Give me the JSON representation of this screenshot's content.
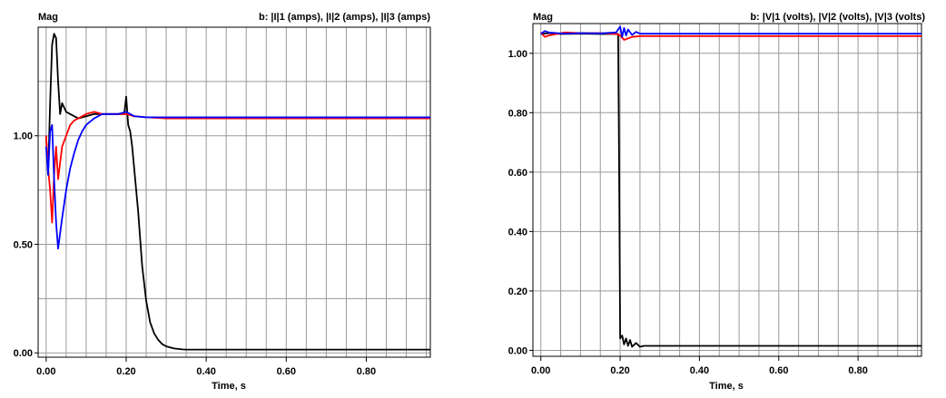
{
  "chart_data": [
    {
      "type": "line",
      "ylabel": "Mag",
      "legend": "b:  |I|1 (amps),  |I|2 (amps),  |I|3 (amps)",
      "xlabel": "Time, s",
      "xlim": [
        -0.02,
        0.96
      ],
      "ylim": [
        -0.02,
        1.5
      ],
      "x_ticks": [
        0.0,
        0.2,
        0.4,
        0.6,
        0.8
      ],
      "x_tick_labels": [
        "0.00",
        "0.20",
        "0.40",
        "0.60",
        "0.80"
      ],
      "x_grid_step": 0.05,
      "y_ticks": [
        0.0,
        0.5,
        1.0
      ],
      "y_tick_labels": [
        "0.00",
        "0.50",
        "1.00"
      ],
      "y_grid": [
        0.0,
        0.25,
        0.5,
        0.75,
        1.0,
        1.25
      ],
      "grid": true,
      "series": [
        {
          "name": "|I|1",
          "color": "#000000",
          "x": [
            0.0,
            0.005,
            0.01,
            0.015,
            0.02,
            0.025,
            0.03,
            0.035,
            0.04,
            0.05,
            0.06,
            0.08,
            0.1,
            0.12,
            0.14,
            0.16,
            0.18,
            0.195,
            0.2,
            0.205,
            0.21,
            0.215,
            0.22,
            0.23,
            0.24,
            0.25,
            0.26,
            0.27,
            0.28,
            0.29,
            0.3,
            0.31,
            0.32,
            0.33,
            0.34,
            0.35,
            0.4,
            0.5,
            0.6,
            0.7,
            0.8,
            0.9,
            0.96
          ],
          "y": [
            1.0,
            0.82,
            1.15,
            1.42,
            1.47,
            1.45,
            1.25,
            1.1,
            1.15,
            1.11,
            1.1,
            1.08,
            1.09,
            1.1,
            1.1,
            1.1,
            1.1,
            1.1,
            1.18,
            1.05,
            1.02,
            0.95,
            0.85,
            0.65,
            0.4,
            0.24,
            0.14,
            0.09,
            0.06,
            0.04,
            0.03,
            0.025,
            0.02,
            0.018,
            0.016,
            0.015,
            0.015,
            0.015,
            0.015,
            0.015,
            0.015,
            0.015,
            0.015
          ]
        },
        {
          "name": "|I|2",
          "color": "#ff0000",
          "x": [
            0.0,
            0.005,
            0.01,
            0.015,
            0.02,
            0.025,
            0.03,
            0.04,
            0.05,
            0.06,
            0.07,
            0.08,
            0.1,
            0.12,
            0.14,
            0.16,
            0.18,
            0.2,
            0.22,
            0.25,
            0.3,
            0.4,
            0.5,
            0.6,
            0.7,
            0.8,
            0.9,
            0.96
          ],
          "y": [
            1.0,
            0.85,
            0.75,
            0.6,
            0.82,
            0.95,
            0.8,
            0.95,
            1.0,
            1.05,
            1.07,
            1.08,
            1.1,
            1.11,
            1.1,
            1.1,
            1.1,
            1.1,
            1.09,
            1.085,
            1.08,
            1.08,
            1.08,
            1.08,
            1.08,
            1.08,
            1.08,
            1.08
          ]
        },
        {
          "name": "|I|3",
          "color": "#0000ff",
          "x": [
            0.0,
            0.005,
            0.01,
            0.015,
            0.02,
            0.025,
            0.03,
            0.035,
            0.04,
            0.05,
            0.06,
            0.07,
            0.08,
            0.09,
            0.1,
            0.12,
            0.14,
            0.16,
            0.18,
            0.2,
            0.22,
            0.25,
            0.3,
            0.4,
            0.5,
            0.6,
            0.7,
            0.8,
            0.9,
            0.96
          ],
          "y": [
            0.95,
            0.82,
            1.02,
            1.05,
            0.8,
            0.6,
            0.48,
            0.55,
            0.62,
            0.75,
            0.85,
            0.92,
            0.98,
            1.02,
            1.05,
            1.08,
            1.1,
            1.1,
            1.1,
            1.11,
            1.09,
            1.085,
            1.085,
            1.085,
            1.085,
            1.085,
            1.085,
            1.085,
            1.085,
            1.085
          ]
        }
      ]
    },
    {
      "type": "line",
      "ylabel": "Mag",
      "legend": "b:  |V|1 (volts),  |V|2 (volts),  |V|3 (volts)",
      "xlabel": "Time, s",
      "xlim": [
        -0.02,
        0.96
      ],
      "ylim": [
        -0.02,
        1.1
      ],
      "x_ticks": [
        0.0,
        0.2,
        0.4,
        0.6,
        0.8
      ],
      "x_tick_labels": [
        "0.00",
        "0.20",
        "0.40",
        "0.60",
        "0.80"
      ],
      "x_grid_step": 0.05,
      "y_ticks": [
        0.0,
        0.2,
        0.4,
        0.6,
        0.8,
        1.0
      ],
      "y_tick_labels": [
        "0.00",
        "0.20",
        "0.40",
        "0.60",
        "0.80",
        "1.00"
      ],
      "y_grid": [
        0.0,
        0.2,
        0.4,
        0.6,
        0.8,
        1.0
      ],
      "grid": true,
      "series": [
        {
          "name": "|V|1",
          "color": "#000000",
          "x": [
            0.0,
            0.02,
            0.05,
            0.1,
            0.15,
            0.19,
            0.195,
            0.198,
            0.2,
            0.205,
            0.21,
            0.215,
            0.22,
            0.225,
            0.23,
            0.24,
            0.25,
            0.26,
            0.3,
            0.4,
            0.5,
            0.6,
            0.7,
            0.8,
            0.9,
            0.96
          ],
          "y": [
            1.065,
            1.068,
            1.065,
            1.066,
            1.065,
            1.065,
            1.065,
            0.5,
            0.04,
            0.05,
            0.02,
            0.04,
            0.015,
            0.035,
            0.012,
            0.025,
            0.012,
            0.015,
            0.015,
            0.015,
            0.015,
            0.015,
            0.015,
            0.015,
            0.015,
            0.015
          ]
        },
        {
          "name": "|V|2",
          "color": "#ff0000",
          "x": [
            0.0,
            0.01,
            0.02,
            0.04,
            0.06,
            0.1,
            0.15,
            0.19,
            0.2,
            0.21,
            0.22,
            0.23,
            0.25,
            0.3,
            0.4,
            0.5,
            0.6,
            0.7,
            0.8,
            0.9,
            0.96
          ],
          "y": [
            1.07,
            1.055,
            1.06,
            1.065,
            1.07,
            1.068,
            1.068,
            1.065,
            1.06,
            1.045,
            1.05,
            1.055,
            1.058,
            1.058,
            1.058,
            1.058,
            1.058,
            1.058,
            1.058,
            1.058,
            1.058
          ]
        },
        {
          "name": "|V|3",
          "color": "#0000ff",
          "x": [
            0.0,
            0.01,
            0.02,
            0.04,
            0.06,
            0.1,
            0.15,
            0.19,
            0.2,
            0.205,
            0.21,
            0.215,
            0.22,
            0.23,
            0.24,
            0.25,
            0.3,
            0.4,
            0.5,
            0.6,
            0.7,
            0.8,
            0.9,
            0.96
          ],
          "y": [
            1.065,
            1.075,
            1.07,
            1.068,
            1.066,
            1.068,
            1.067,
            1.07,
            1.09,
            1.055,
            1.085,
            1.06,
            1.08,
            1.062,
            1.072,
            1.066,
            1.066,
            1.066,
            1.066,
            1.066,
            1.066,
            1.066,
            1.066,
            1.066
          ]
        }
      ]
    }
  ]
}
